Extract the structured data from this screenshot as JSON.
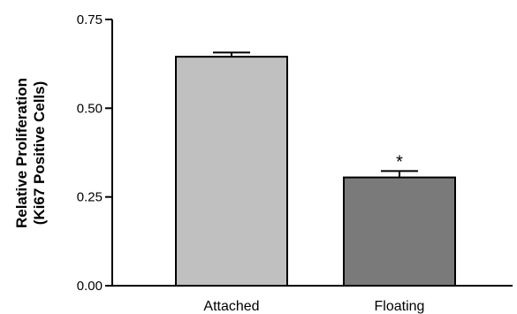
{
  "chart_data": {
    "type": "bar",
    "categories": [
      "Attached",
      "Floating"
    ],
    "values": [
      0.645,
      0.305
    ],
    "errors": [
      0.012,
      0.018
    ],
    "ylabel_line1": "Relative Proliferation",
    "ylabel_line2": "(Ki67 Positive Cells)",
    "ylim": [
      0,
      0.75
    ],
    "yticks": [
      "0.00",
      "0.25",
      "0.50",
      "0.75"
    ],
    "ytick_values": [
      0,
      0.25,
      0.5,
      0.75
    ],
    "bar_colors": [
      "#c0c0c0",
      "#7a7a7a"
    ],
    "annotations": [
      "",
      "*"
    ],
    "grid": false
  }
}
